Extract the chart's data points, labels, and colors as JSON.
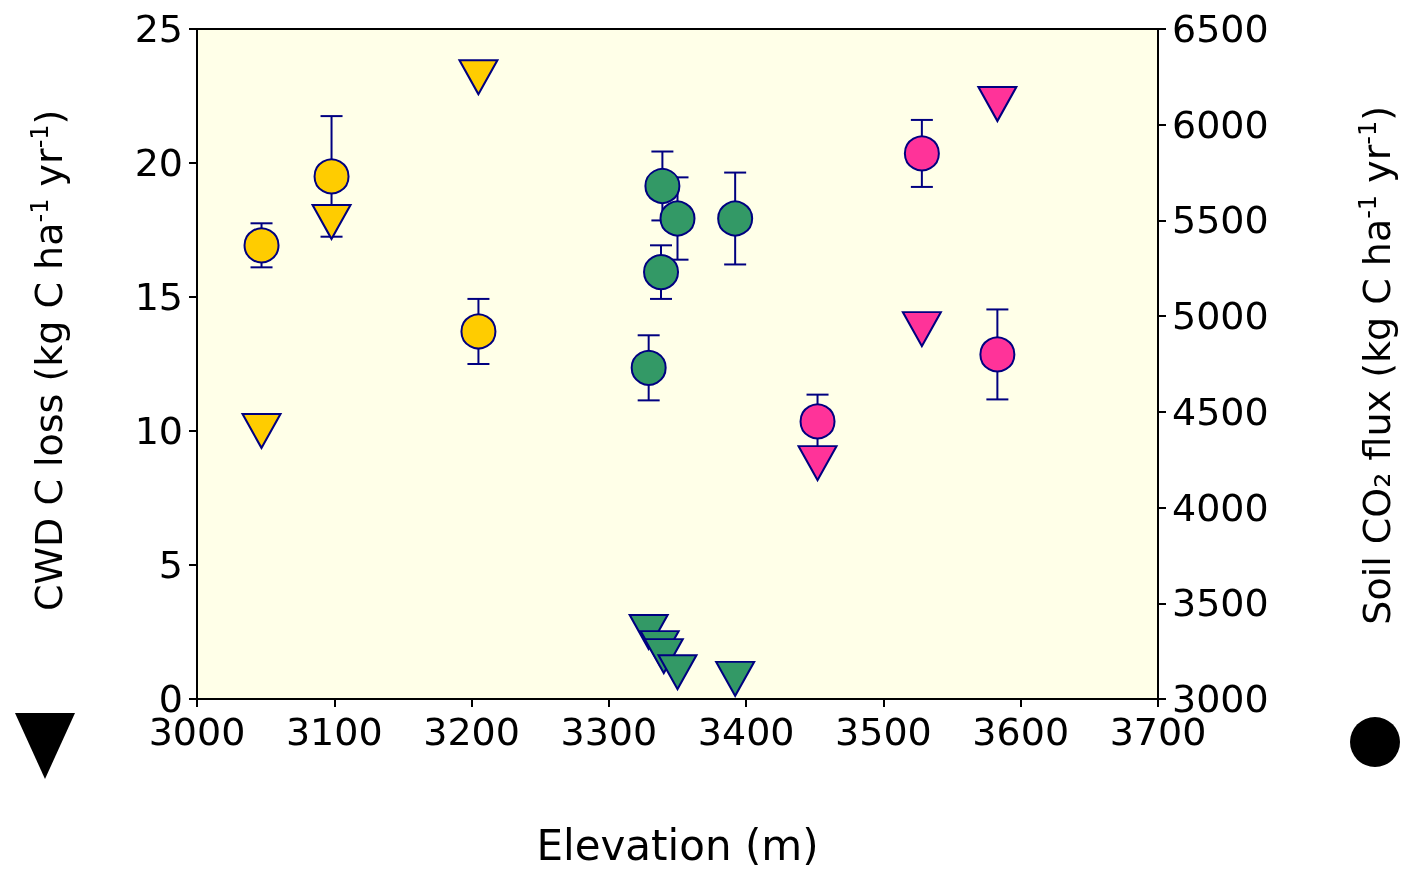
{
  "chart_data": {
    "type": "scatter",
    "xlabel": "Elevation (m)",
    "ylabel": "CWD C loss (kg C ha$^{-1}$ yr$^{-1}$)",
    "y2label": "Soil CO₂ flux (kg C ha$^{-1}$ yr$^{-1}$)",
    "xlim": [
      3000,
      3700
    ],
    "xticks": [
      3000,
      3100,
      3200,
      3300,
      3400,
      3500,
      3600,
      3700
    ],
    "ylim": [
      0,
      25
    ],
    "yticks": [
      0,
      5,
      10,
      15,
      20,
      25
    ],
    "y2lim": [
      3000,
      6500
    ],
    "y2ticks": [
      3000,
      3500,
      4000,
      4500,
      5000,
      5500,
      6000,
      6500
    ],
    "grid": false,
    "series": [
      {
        "color": "#ffcc00",
        "marker": "triangle",
        "x": [
          3047,
          3098,
          3205
        ],
        "values": [
          10.0,
          17.8,
          23.2
        ]
      },
      {
        "color": "#339966",
        "marker": "triangle",
        "x": [
          3329,
          3337,
          3340,
          3350,
          3392
        ],
        "values": [
          2.5,
          1.9,
          1.6,
          1.0,
          0.75
        ]
      },
      {
        "color": "#ff3399",
        "marker": "triangle",
        "x": [
          3452,
          3528,
          3583
        ],
        "values": [
          8.8,
          13.8,
          22.2
        ]
      },
      {
        "color": "#ffcc00",
        "marker": "circle",
        "axis": "y2",
        "x": [
          3047,
          3098,
          3205
        ],
        "values": [
          5370,
          5730,
          4920
        ],
        "errors": [
          115,
          315,
          170
        ]
      },
      {
        "color": "#339966",
        "marker": "circle",
        "axis": "y2",
        "x": [
          3329,
          3338,
          3339,
          3350,
          3392
        ],
        "values": [
          4730,
          5230,
          5680,
          5510,
          5510
        ],
        "errors": [
          170,
          140,
          180,
          215,
          240
        ]
      },
      {
        "color": "#ff3399",
        "marker": "circle",
        "axis": "y2",
        "x": [
          3452,
          3528,
          3583
        ],
        "values": [
          4450,
          5850,
          4800
        ],
        "errors": [
          140,
          175,
          235
        ]
      }
    ]
  }
}
